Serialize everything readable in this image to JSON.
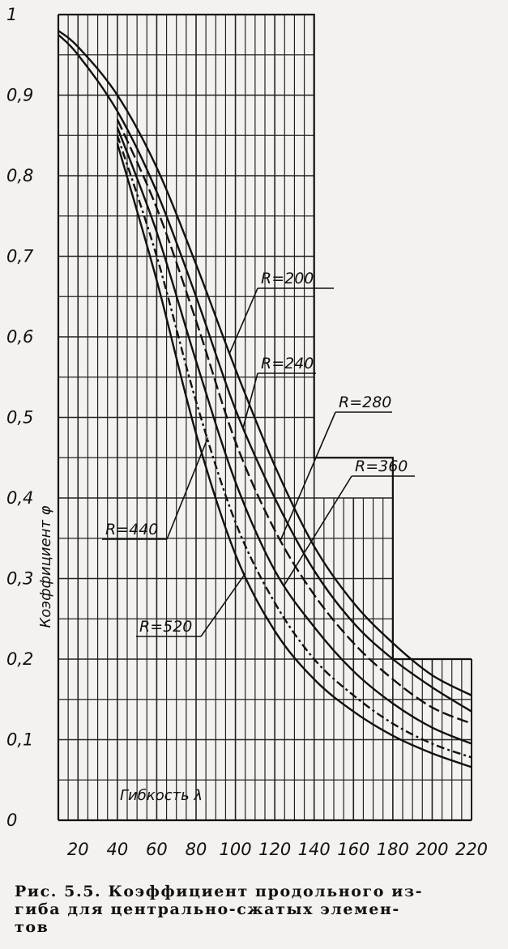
{
  "chart_data": {
    "type": "line",
    "ylabel": "Коэффициент φ",
    "xlabel": "Гибкость λ",
    "x_ticks": [
      "20",
      "40",
      "60",
      "80",
      "100",
      "120",
      "140",
      "160",
      "180",
      "200",
      "220"
    ],
    "y_ticks": [
      "0",
      "0,1",
      "0,2",
      "0,3",
      "0,4",
      "0,5",
      "0,6",
      "0,7",
      "0,8",
      "0,9",
      "1"
    ],
    "xlim": [
      10,
      220
    ],
    "ylim": [
      0,
      1
    ],
    "grid": true,
    "series": [
      {
        "name": "R=200",
        "label_text": "R=200",
        "x": [
          10,
          20,
          40,
          60,
          80,
          100,
          120,
          140,
          160,
          180,
          200,
          220
        ],
        "y": [
          0.98,
          0.96,
          0.9,
          0.81,
          0.69,
          0.56,
          0.44,
          0.34,
          0.27,
          0.22,
          0.18,
          0.155
        ]
      },
      {
        "name": "R=240",
        "label_text": "R=240",
        "x": [
          10,
          20,
          40,
          60,
          80,
          100,
          120,
          140,
          160,
          180,
          200,
          220
        ],
        "y": [
          0.975,
          0.95,
          0.88,
          0.78,
          0.65,
          0.51,
          0.4,
          0.31,
          0.245,
          0.2,
          0.165,
          0.135
        ]
      },
      {
        "name": "R=280",
        "label_text": "R=280",
        "x": [
          40,
          60,
          80,
          100,
          120,
          140,
          160,
          180,
          200,
          220
        ],
        "y": [
          0.87,
          0.76,
          0.62,
          0.47,
          0.36,
          0.28,
          0.22,
          0.175,
          0.14,
          0.12
        ]
      },
      {
        "name": "R=360",
        "label_text": "R=360",
        "x": [
          40,
          60,
          80,
          100,
          120,
          140,
          160,
          180,
          200,
          220
        ],
        "y": [
          0.86,
          0.73,
          0.57,
          0.42,
          0.31,
          0.24,
          0.185,
          0.145,
          0.115,
          0.095
        ]
      },
      {
        "name": "R=440",
        "label_text": "R=440",
        "x": [
          40,
          60,
          80,
          100,
          120,
          140,
          160,
          180,
          200,
          220
        ],
        "y": [
          0.85,
          0.7,
          0.52,
          0.37,
          0.27,
          0.2,
          0.155,
          0.12,
          0.095,
          0.078
        ]
      },
      {
        "name": "R=520",
        "label_text": "R=520",
        "x": [
          40,
          60,
          80,
          100,
          120,
          140,
          160,
          180,
          200,
          220
        ],
        "y": [
          0.84,
          0.67,
          0.48,
          0.33,
          0.235,
          0.175,
          0.135,
          0.105,
          0.083,
          0.066
        ]
      }
    ],
    "annotations": [
      {
        "text": "R=200",
        "series": "R=200",
        "at_x": 97
      },
      {
        "text": "R=240",
        "series": "R=240",
        "at_x": 104
      },
      {
        "text": "R=280",
        "series": "R=280",
        "at_x": 123
      },
      {
        "text": "R=360",
        "series": "R=360",
        "at_x": 125
      },
      {
        "text": "R=440",
        "series": "R=440",
        "at_x": 86
      },
      {
        "text": "R=520",
        "series": "R=520",
        "at_x": 105
      }
    ]
  },
  "caption": {
    "line1": "Рис. 5.5. Коэффициент продольного из-",
    "line2": "гиба для центрально-сжатых элемен-",
    "line3": "тов"
  }
}
